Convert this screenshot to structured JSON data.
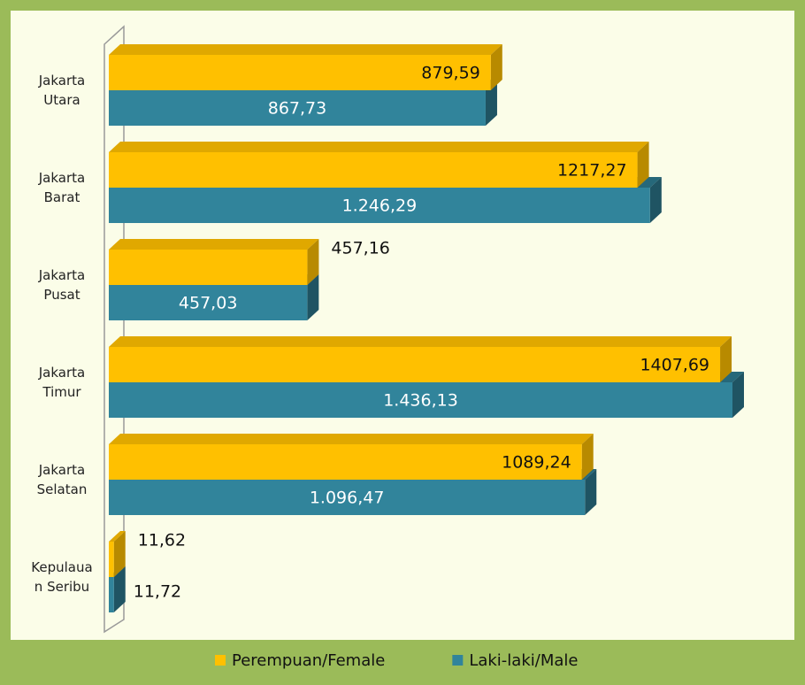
{
  "chart_data": {
    "type": "bar3d-horizontal",
    "categories": [
      "Jakarta Utara",
      "Jakarta Barat",
      "Jakarta Pusat",
      "Jakarta Timur",
      "Jakarta Selatan",
      "Kepulauan Seribu"
    ],
    "series": [
      {
        "name": "Perempuan/Female",
        "color": "#ffc000",
        "side_color": "#b88a00",
        "top_color": "#e0a800",
        "values": [
          879.59,
          1217.27,
          457.16,
          1407.69,
          1089.24,
          11.62
        ],
        "value_labels": [
          "879,59",
          "1217,27",
          "457,16",
          "1407,69",
          "1089,24",
          "11,62"
        ]
      },
      {
        "name": "Laki-laki/Male",
        "color": "#31849b",
        "side_color": "#1f5463",
        "top_color": "#26687a",
        "values": [
          867.73,
          1246.29,
          457.03,
          1436.13,
          1096.47,
          11.72
        ],
        "value_labels": [
          "867,73",
          "1.246,29",
          "457,03",
          "1.436,13",
          "1.096,47",
          "11,72"
        ]
      }
    ],
    "legend": "bottom"
  }
}
